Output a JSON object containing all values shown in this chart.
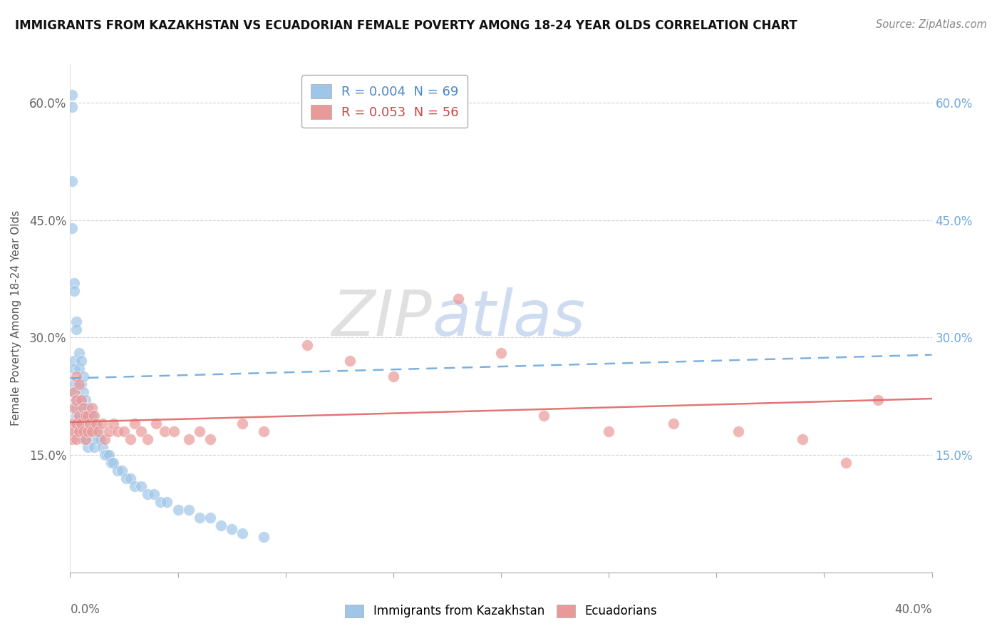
{
  "title": "IMMIGRANTS FROM KAZAKHSTAN VS ECUADORIAN FEMALE POVERTY AMONG 18-24 YEAR OLDS CORRELATION CHART",
  "source": "Source: ZipAtlas.com",
  "ylabel": "Female Poverty Among 18-24 Year Olds",
  "ytick_values": [
    0.0,
    0.15,
    0.3,
    0.45,
    0.6
  ],
  "ytick_labels_left": [
    "",
    "15.0%",
    "30.0%",
    "45.0%",
    "60.0%"
  ],
  "ytick_labels_right": [
    "",
    "15.0%",
    "30.0%",
    "45.0%",
    "60.0%"
  ],
  "xlim": [
    0.0,
    0.4
  ],
  "ylim": [
    0.0,
    0.65
  ],
  "blue_color": "#9fc5e8",
  "pink_color": "#ea9999",
  "blue_line_color": "#6fa8dc",
  "pink_line_color": "#e06666",
  "watermark_zip": "ZIP",
  "watermark_atlas": "atlas",
  "blue_x": [
    0.001,
    0.001,
    0.001,
    0.001,
    0.002,
    0.002,
    0.002,
    0.002,
    0.002,
    0.002,
    0.003,
    0.003,
    0.003,
    0.003,
    0.003,
    0.003,
    0.003,
    0.004,
    0.004,
    0.004,
    0.004,
    0.004,
    0.005,
    0.005,
    0.005,
    0.005,
    0.006,
    0.006,
    0.006,
    0.006,
    0.007,
    0.007,
    0.007,
    0.008,
    0.008,
    0.008,
    0.009,
    0.009,
    0.01,
    0.01,
    0.011,
    0.011,
    0.012,
    0.013,
    0.014,
    0.015,
    0.016,
    0.017,
    0.018,
    0.019,
    0.02,
    0.022,
    0.024,
    0.026,
    0.028,
    0.03,
    0.033,
    0.036,
    0.039,
    0.042,
    0.045,
    0.05,
    0.055,
    0.06,
    0.065,
    0.07,
    0.075,
    0.08,
    0.09
  ],
  "blue_y": [
    0.595,
    0.61,
    0.5,
    0.44,
    0.37,
    0.36,
    0.27,
    0.26,
    0.24,
    0.23,
    0.32,
    0.31,
    0.22,
    0.21,
    0.2,
    0.19,
    0.18,
    0.28,
    0.26,
    0.22,
    0.2,
    0.18,
    0.27,
    0.24,
    0.21,
    0.19,
    0.25,
    0.23,
    0.2,
    0.17,
    0.22,
    0.2,
    0.17,
    0.21,
    0.19,
    0.16,
    0.2,
    0.18,
    0.2,
    0.17,
    0.19,
    0.16,
    0.18,
    0.17,
    0.17,
    0.16,
    0.15,
    0.15,
    0.15,
    0.14,
    0.14,
    0.13,
    0.13,
    0.12,
    0.12,
    0.11,
    0.11,
    0.1,
    0.1,
    0.09,
    0.09,
    0.08,
    0.08,
    0.07,
    0.07,
    0.06,
    0.055,
    0.05,
    0.045
  ],
  "pink_x": [
    0.001,
    0.001,
    0.002,
    0.002,
    0.002,
    0.003,
    0.003,
    0.003,
    0.003,
    0.004,
    0.004,
    0.004,
    0.005,
    0.005,
    0.006,
    0.006,
    0.007,
    0.007,
    0.008,
    0.008,
    0.009,
    0.01,
    0.01,
    0.011,
    0.012,
    0.013,
    0.015,
    0.016,
    0.018,
    0.02,
    0.022,
    0.025,
    0.028,
    0.03,
    0.033,
    0.036,
    0.04,
    0.044,
    0.048,
    0.055,
    0.06,
    0.065,
    0.08,
    0.09,
    0.11,
    0.13,
    0.15,
    0.18,
    0.2,
    0.22,
    0.25,
    0.28,
    0.31,
    0.34,
    0.36,
    0.375
  ],
  "pink_y": [
    0.19,
    0.17,
    0.23,
    0.21,
    0.18,
    0.25,
    0.22,
    0.19,
    0.17,
    0.24,
    0.2,
    0.18,
    0.22,
    0.19,
    0.21,
    0.18,
    0.2,
    0.17,
    0.2,
    0.18,
    0.19,
    0.21,
    0.18,
    0.2,
    0.19,
    0.18,
    0.19,
    0.17,
    0.18,
    0.19,
    0.18,
    0.18,
    0.17,
    0.19,
    0.18,
    0.17,
    0.19,
    0.18,
    0.18,
    0.17,
    0.18,
    0.17,
    0.19,
    0.18,
    0.29,
    0.27,
    0.25,
    0.35,
    0.28,
    0.2,
    0.18,
    0.19,
    0.18,
    0.17,
    0.14,
    0.22
  ],
  "blue_trend_x": [
    0.0,
    0.4
  ],
  "blue_trend_y": [
    0.248,
    0.278
  ],
  "pink_trend_x": [
    0.0,
    0.4
  ],
  "pink_trend_y": [
    0.192,
    0.222
  ],
  "legend_text1": "R = 0.004  N = 69",
  "legend_text2": "R = 0.053  N = 56",
  "legend_color1": "#4a86c8",
  "legend_color2": "#cc4444",
  "bottom_legend1": "Immigrants from Kazakhstan",
  "bottom_legend2": "Ecuadorians"
}
